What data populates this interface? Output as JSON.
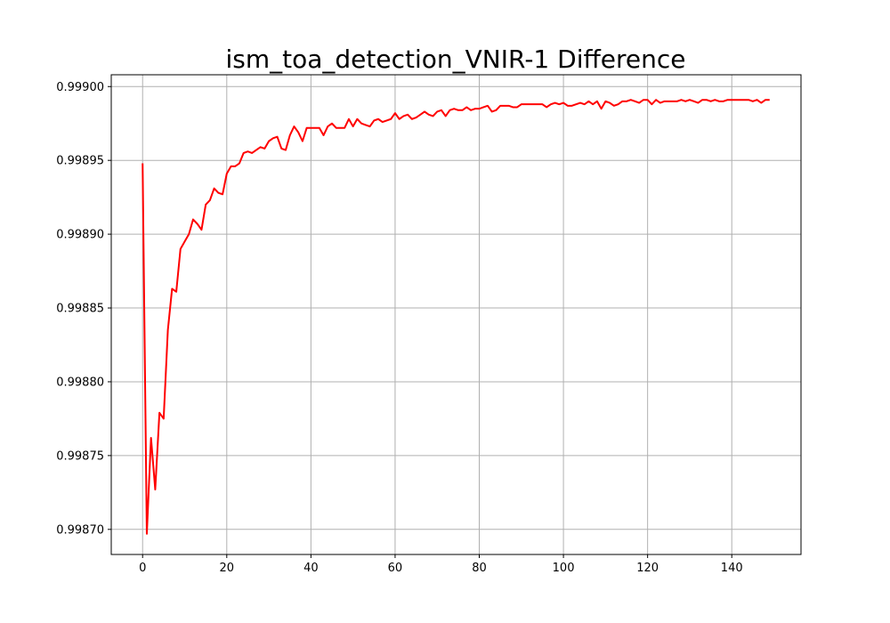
{
  "chart_data": {
    "type": "line",
    "title": "ism_toa_detection_VNIR-1 Difference",
    "xlabel": "",
    "ylabel": "",
    "xlim": [
      -7.45,
      156.45
    ],
    "ylim": [
      0.998683,
      0.999008
    ],
    "x_ticks": [
      0,
      20,
      40,
      60,
      80,
      100,
      120,
      140
    ],
    "x_tick_labels": [
      "0",
      "20",
      "40",
      "60",
      "80",
      "100",
      "120",
      "140"
    ],
    "y_ticks": [
      0.9987,
      0.99875,
      0.9988,
      0.99885,
      0.9989,
      0.99895,
      0.999
    ],
    "y_tick_labels": [
      "0.99870",
      "0.99875",
      "0.99880",
      "0.99885",
      "0.99890",
      "0.99895",
      "0.99900"
    ],
    "grid": true,
    "series": [
      {
        "color": "#ff0000",
        "x": [
          0,
          1,
          2,
          3,
          4,
          5,
          6,
          7,
          8,
          9,
          10,
          11,
          12,
          13,
          14,
          15,
          16,
          17,
          18,
          19,
          20,
          21,
          22,
          23,
          24,
          25,
          26,
          27,
          28,
          29,
          30,
          31,
          32,
          33,
          34,
          35,
          36,
          37,
          38,
          39,
          40,
          41,
          42,
          43,
          44,
          45,
          46,
          47,
          48,
          49,
          50,
          51,
          52,
          53,
          54,
          55,
          56,
          57,
          58,
          59,
          60,
          61,
          62,
          63,
          64,
          65,
          66,
          67,
          68,
          69,
          70,
          71,
          72,
          73,
          74,
          75,
          76,
          77,
          78,
          79,
          80,
          81,
          82,
          83,
          84,
          85,
          86,
          87,
          88,
          89,
          90,
          91,
          92,
          93,
          94,
          95,
          96,
          97,
          98,
          99,
          100,
          101,
          102,
          103,
          104,
          105,
          106,
          107,
          108,
          109,
          110,
          111,
          112,
          113,
          114,
          115,
          116,
          117,
          118,
          119,
          120,
          121,
          122,
          123,
          124,
          125,
          126,
          127,
          128,
          129,
          130,
          131,
          132,
          133,
          134,
          135,
          136,
          137,
          138,
          139,
          140,
          141,
          142,
          143,
          144,
          145,
          146,
          147,
          148,
          149
        ],
        "values": [
          0.998948,
          0.998697,
          0.998762,
          0.998727,
          0.998779,
          0.998775,
          0.998835,
          0.998863,
          0.998861,
          0.99889,
          0.998895,
          0.9989,
          0.99891,
          0.998907,
          0.998903,
          0.99892,
          0.998923,
          0.998931,
          0.998928,
          0.998927,
          0.998941,
          0.998946,
          0.998946,
          0.998948,
          0.998955,
          0.998956,
          0.998955,
          0.998957,
          0.998959,
          0.998958,
          0.998963,
          0.998965,
          0.998966,
          0.998958,
          0.998957,
          0.998967,
          0.998973,
          0.998969,
          0.998963,
          0.998972,
          0.998972,
          0.998972,
          0.998972,
          0.998967,
          0.998973,
          0.998975,
          0.998972,
          0.998972,
          0.998972,
          0.998978,
          0.998973,
          0.998978,
          0.998975,
          0.998974,
          0.998973,
          0.998977,
          0.998978,
          0.998976,
          0.998977,
          0.998978,
          0.998982,
          0.998978,
          0.99898,
          0.998981,
          0.998978,
          0.998979,
          0.998981,
          0.998983,
          0.998981,
          0.99898,
          0.998983,
          0.998984,
          0.99898,
          0.998984,
          0.998985,
          0.998984,
          0.998984,
          0.998986,
          0.998984,
          0.998985,
          0.998985,
          0.998986,
          0.998987,
          0.998983,
          0.998984,
          0.998987,
          0.998987,
          0.998987,
          0.998986,
          0.998986,
          0.998988,
          0.998988,
          0.998988,
          0.998988,
          0.998988,
          0.998988,
          0.998986,
          0.998988,
          0.998989,
          0.998988,
          0.998989,
          0.998987,
          0.998987,
          0.998988,
          0.998989,
          0.998988,
          0.99899,
          0.998988,
          0.99899,
          0.998985,
          0.99899,
          0.998989,
          0.998987,
          0.998988,
          0.99899,
          0.99899,
          0.998991,
          0.99899,
          0.998989,
          0.998991,
          0.998991,
          0.998988,
          0.998991,
          0.998989,
          0.99899,
          0.99899,
          0.99899,
          0.99899,
          0.998991,
          0.99899,
          0.998991,
          0.99899,
          0.998989,
          0.998991,
          0.998991,
          0.99899,
          0.998991,
          0.99899,
          0.99899,
          0.998991,
          0.998991,
          0.998991,
          0.998991,
          0.998991,
          0.998991,
          0.99899,
          0.998991,
          0.998989,
          0.998991,
          0.998991
        ]
      }
    ]
  }
}
